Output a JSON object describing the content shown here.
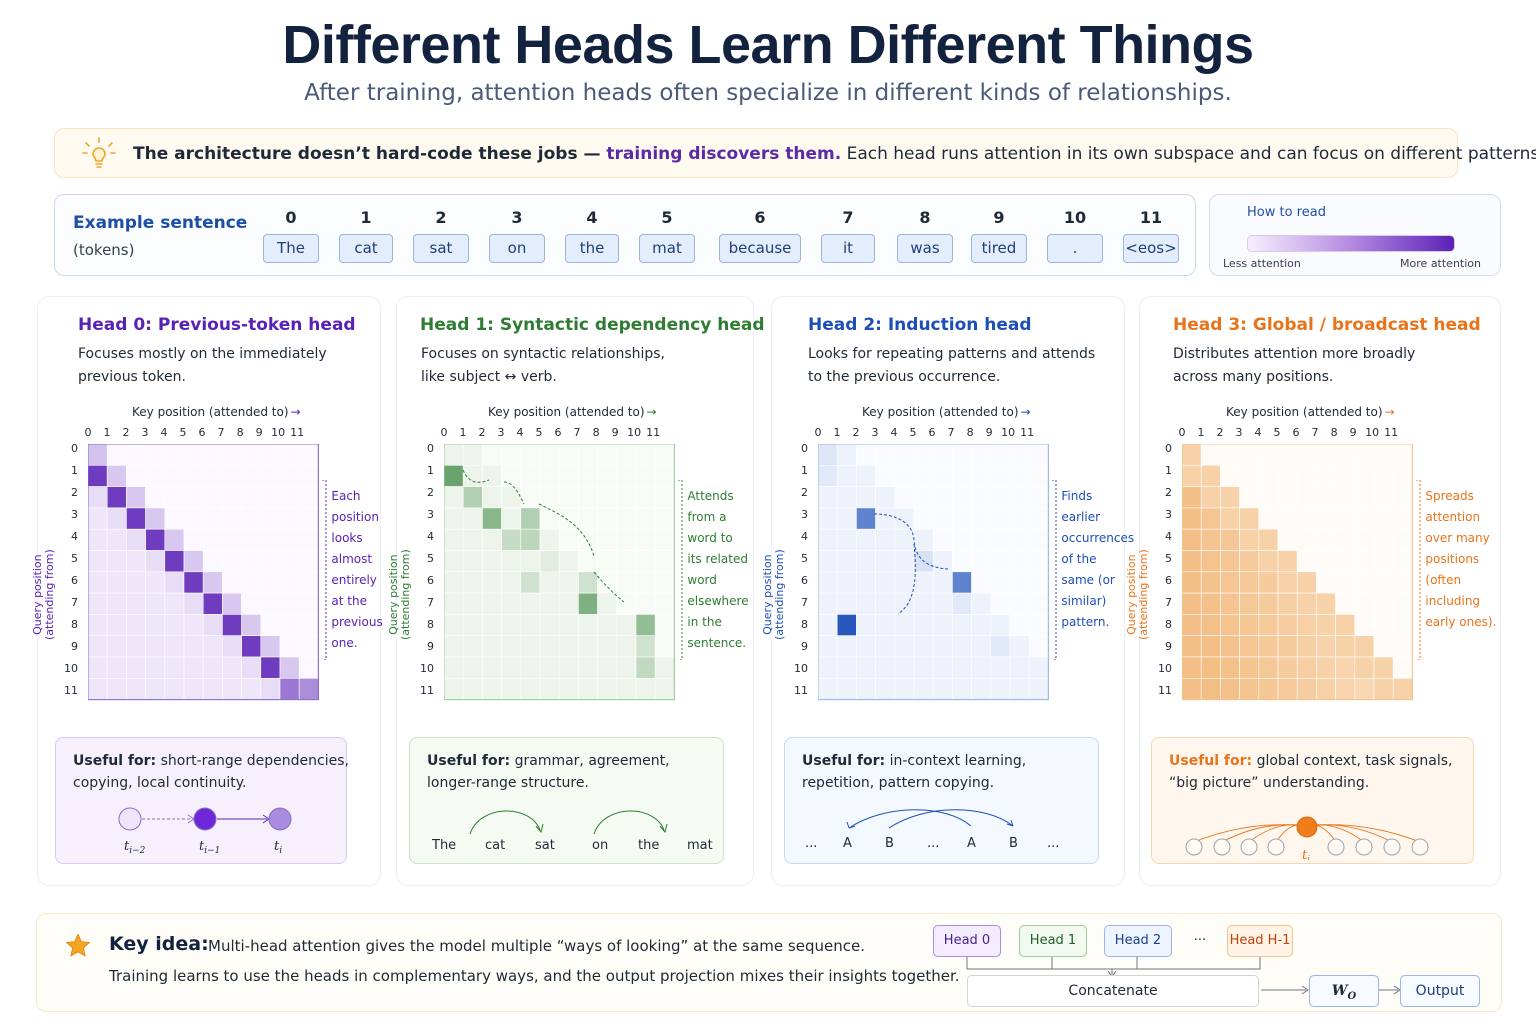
{
  "title": "Different Heads Learn Different Things",
  "subtitle": "After training, attention heads often specialize in different kinds of relationships.",
  "note": {
    "part1": "The architecture doesn’t hard-code these jobs — ",
    "part2": "training discovers them.",
    "part3": " Each head runs attention in its own subspace and can focus on different patterns."
  },
  "sentence": {
    "label": "Example sentence",
    "sublabel": "(tokens)",
    "tokens": [
      "The",
      "cat",
      "sat",
      "on",
      "the",
      "mat",
      "because",
      "it",
      "was",
      "tired",
      ".",
      "<eos>"
    ],
    "indices": [
      "0",
      "1",
      "2",
      "3",
      "4",
      "5",
      "6",
      "7",
      "8",
      "9",
      "10",
      "11"
    ]
  },
  "legend": {
    "title": "How to read",
    "less": "Less attention",
    "more": "More attention"
  },
  "axis": {
    "key": "Key position (attended to)",
    "query": "Query position",
    "query2": "(attending from)",
    "ticks": [
      "0",
      "1",
      "2",
      "3",
      "4",
      "5",
      "6",
      "7",
      "8",
      "9",
      "10",
      "11"
    ]
  },
  "heads": [
    {
      "title": "Head 0: Previous-token head",
      "desc1": "Focuses mostly on the immediately",
      "desc2": "previous token.",
      "annotation": [
        "Each",
        "position",
        "looks",
        "almost",
        "entirely",
        "at the",
        "previous",
        "one."
      ],
      "useful_label": "Useful for:",
      "useful1": " short-range dependencies,",
      "useful2": "copying, local continuity.",
      "nodes": [
        "t",
        "t",
        "t"
      ],
      "subs": [
        "i−2",
        "i−1",
        "i"
      ],
      "color": "#5b21b6"
    },
    {
      "title": "Head 1: Syntactic dependency head",
      "desc1": "Focuses on syntactic relationships,",
      "desc2": "like subject ↔ verb.",
      "annotation": [
        "Attends",
        "from a",
        "word to",
        "its related",
        "word",
        "elsewhere",
        "in the",
        "sentence."
      ],
      "useful_label": "Useful for:",
      "useful1": " grammar, agreement,",
      "useful2": "longer-range structure.",
      "words": [
        "The",
        "cat",
        "sat",
        "on",
        "the",
        "mat"
      ],
      "color": "#2e7d32"
    },
    {
      "title": "Head 2: Induction head",
      "desc1": "Looks for repeating patterns and attends",
      "desc2": "to the previous occurrence.",
      "annotation": [
        "Finds",
        "earlier",
        "occurrences",
        "of the",
        "same (or",
        "similar)",
        "pattern."
      ],
      "useful_label": "Useful for:",
      "useful1": " in-context learning,",
      "useful2": "repetition, pattern copying.",
      "seq": [
        "...",
        "A",
        "B",
        "...",
        "A",
        "B",
        "..."
      ],
      "color": "#1d4fb8"
    },
    {
      "title": "Head 3: Global / broadcast head",
      "desc1": "Distributes attention more broadly",
      "desc2": "across many positions.",
      "annotation": [
        "Spreads",
        "attention",
        "over many",
        "positions",
        "(often",
        "including",
        "early ones)."
      ],
      "useful_label": "Useful for:",
      "useful1": " global context, task signals,",
      "useful2": "“big picture” understanding.",
      "node_label": "t",
      "node_sub": "i",
      "color": "#e8731a"
    }
  ],
  "key_idea": {
    "label": "Key idea:",
    "line1": "Multi-head attention gives the model multiple “ways of looking” at the same sequence.",
    "line2": "Training learns to use the heads in complementary ways, and the output projection mixes their insights together."
  },
  "flow": {
    "heads": [
      "Head 0",
      "Head 1",
      "Head 2",
      "···",
      "Head H-1"
    ],
    "concat": "Concatenate",
    "wo": "W",
    "wo_sub": "O",
    "output": "Output"
  }
}
